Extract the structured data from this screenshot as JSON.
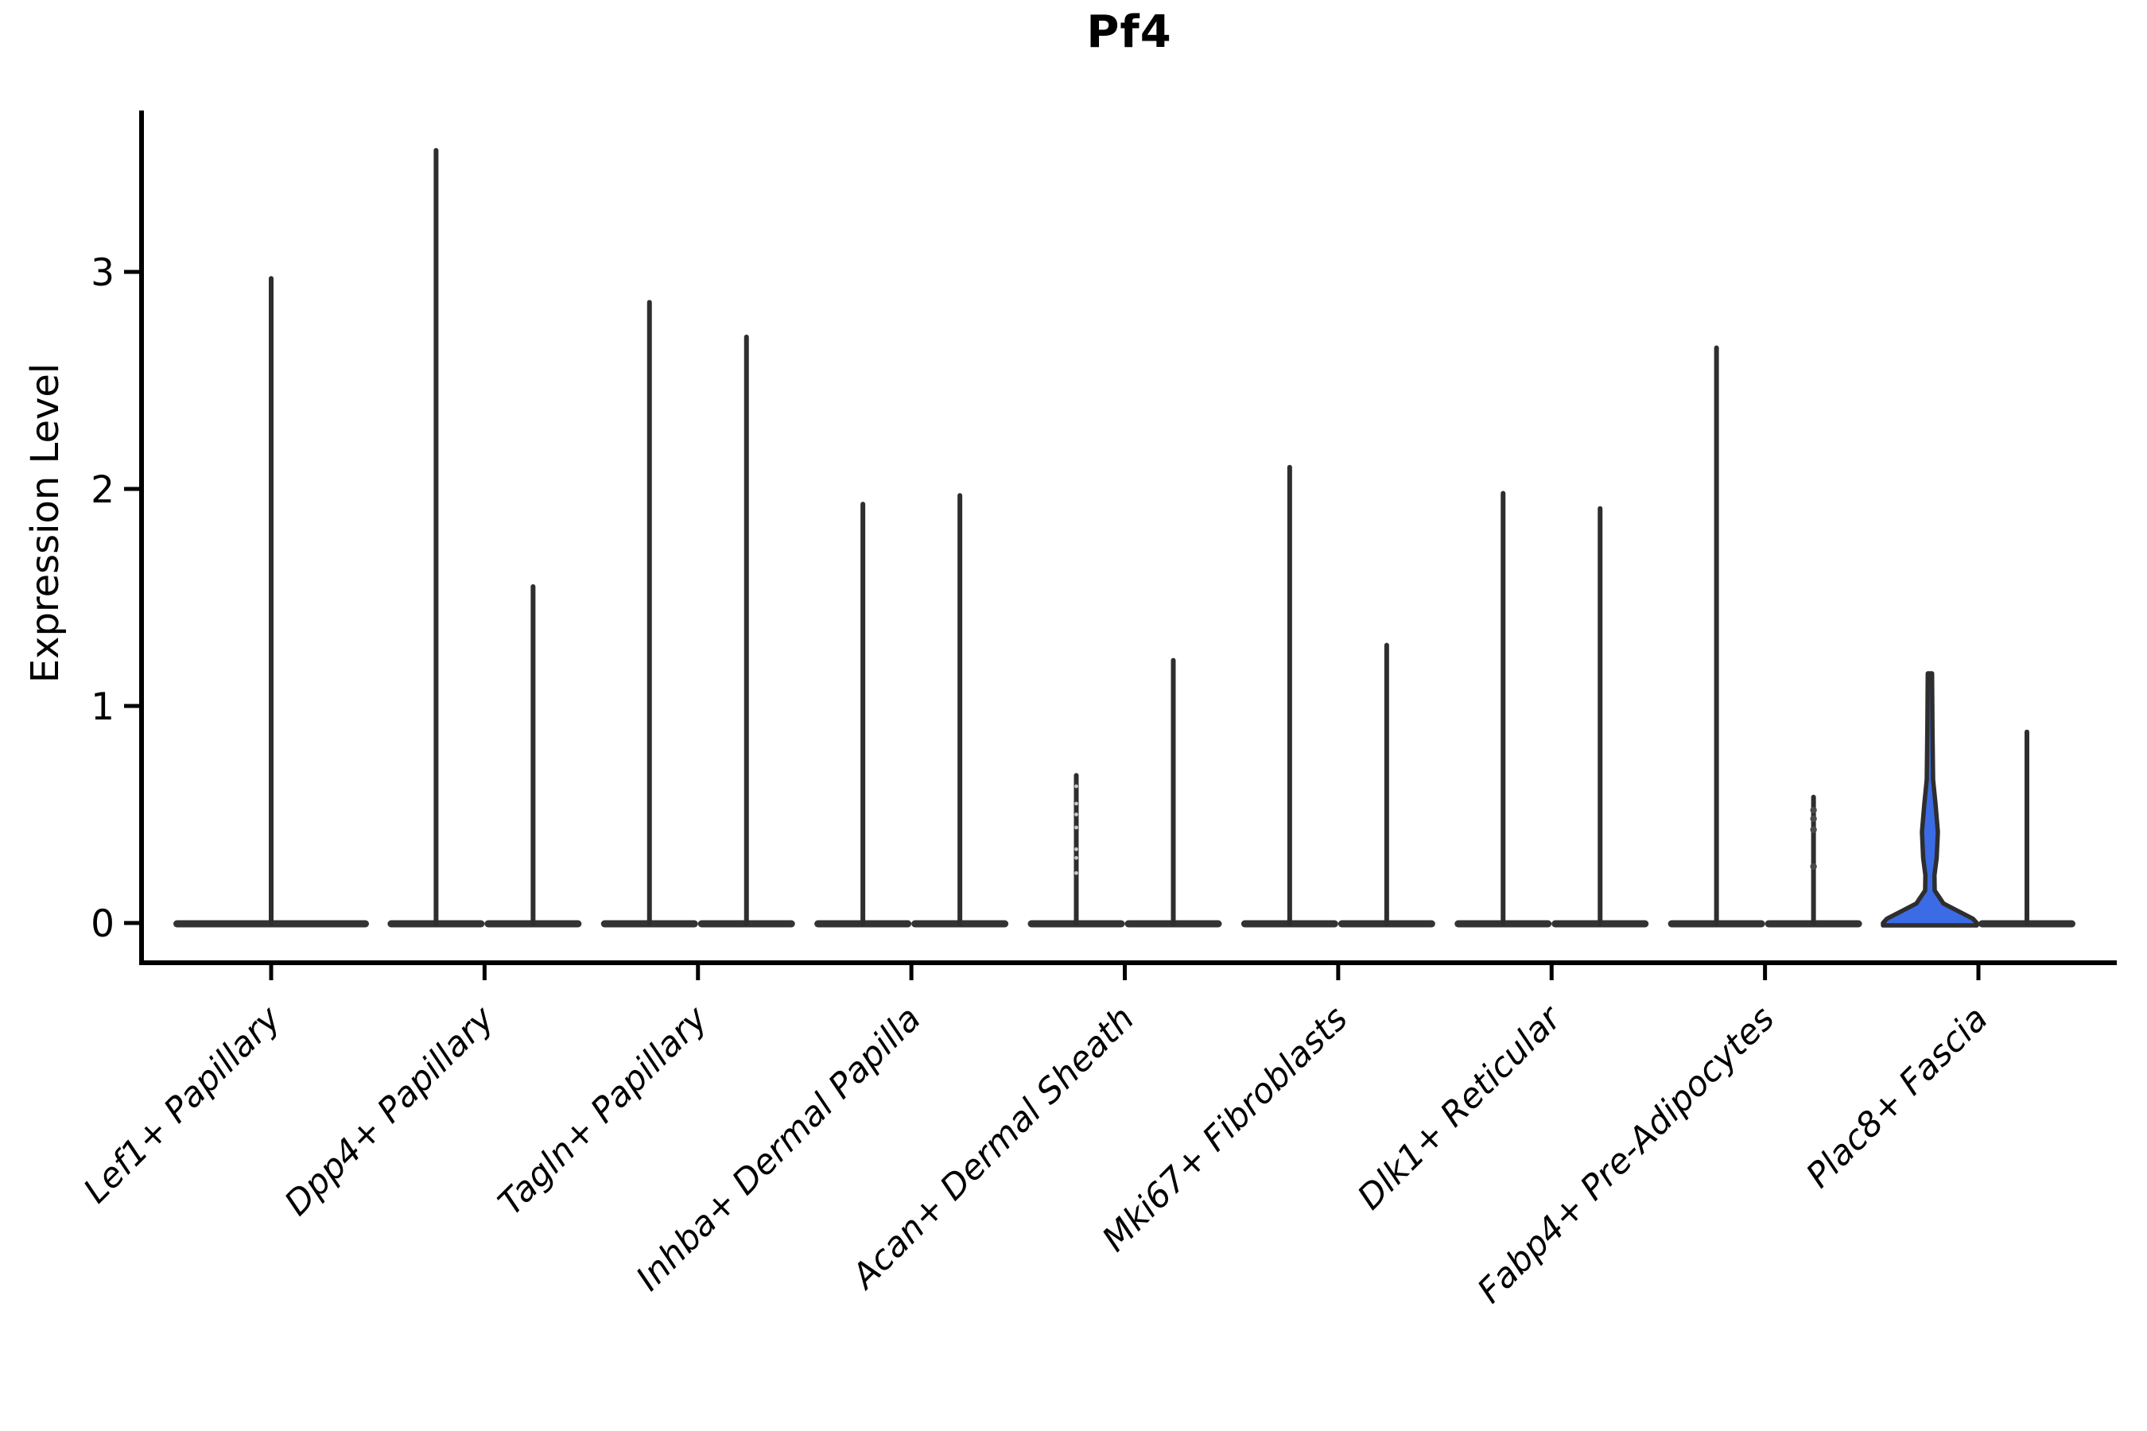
{
  "title": "Pf4",
  "ylabel": "Expression Level",
  "chart_data": {
    "type": "violin",
    "title": "Pf4",
    "xlabel": "",
    "ylabel": "Expression Level",
    "yticks": [
      0,
      1,
      2,
      3
    ],
    "ylim": [
      -0.18,
      3.74
    ],
    "grid": false,
    "legend": null,
    "description": "Seurat-style violin plot of Pf4 expression across 9 fibroblast clusters; most violins collapse to a flat base at 0 with a thin density spike up to the max expressed cell; each category except the first holds two side-by-side violins; the left violin of Plac8+ Fascia is filled blue with a visible density bulge.",
    "categories": [
      "Lef1+ Papillary",
      "Dpp4+ Papillary",
      "Tagln+ Papillary",
      "Inhba+ Dermal Papilla",
      "Acan+ Dermal Sheath",
      "Mki67+ Fibroblasts",
      "Dlk1+ Reticular",
      "Fabp4+ Pre-Adipocytes",
      "Plac8+ Fascia"
    ],
    "violins": [
      {
        "category": "Lef1+ Papillary",
        "position": "center",
        "max": 2.97,
        "fill": "none"
      },
      {
        "category": "Dpp4+ Papillary",
        "position": "left",
        "max": 3.56,
        "fill": "none"
      },
      {
        "category": "Dpp4+ Papillary",
        "position": "right",
        "max": 1.55,
        "fill": "none"
      },
      {
        "category": "Tagln+ Papillary",
        "position": "left",
        "max": 2.86,
        "fill": "none"
      },
      {
        "category": "Tagln+ Papillary",
        "position": "right",
        "max": 2.7,
        "fill": "none"
      },
      {
        "category": "Inhba+ Dermal Papilla",
        "position": "left",
        "max": 1.93,
        "fill": "none"
      },
      {
        "category": "Inhba+ Dermal Papilla",
        "position": "right",
        "max": 1.97,
        "fill": "none"
      },
      {
        "category": "Acan+ Dermal Sheath",
        "position": "left",
        "max": 0.68,
        "fill": "none",
        "points_faint": [
          0.63,
          0.55,
          0.5,
          0.44,
          0.34,
          0.3,
          0.23
        ]
      },
      {
        "category": "Acan+ Dermal Sheath",
        "position": "right",
        "max": 1.21,
        "fill": "none"
      },
      {
        "category": "Mki67+ Fibroblasts",
        "position": "left",
        "max": 2.1,
        "fill": "none"
      },
      {
        "category": "Mki67+ Fibroblasts",
        "position": "right",
        "max": 1.28,
        "fill": "none"
      },
      {
        "category": "Dlk1+ Reticular",
        "position": "left",
        "max": 1.98,
        "fill": "none"
      },
      {
        "category": "Dlk1+ Reticular",
        "position": "right",
        "max": 1.91,
        "fill": "none"
      },
      {
        "category": "Fabp4+ Pre-Adipocytes",
        "position": "left",
        "max": 2.65,
        "fill": "none"
      },
      {
        "category": "Fabp4+ Pre-Adipocytes",
        "position": "right",
        "max": 0.58,
        "fill": "none",
        "points": [
          0.52,
          0.48,
          0.43,
          0.26
        ]
      },
      {
        "category": "Plac8+ Fascia",
        "position": "left",
        "max": 1.15,
        "fill": "#3B6BE5",
        "profile": [
          [
            1.15,
            2.7
          ],
          [
            0.9,
            3.2
          ],
          [
            0.66,
            4.0
          ],
          [
            0.55,
            7.0
          ],
          [
            0.42,
            10.0
          ],
          [
            0.3,
            8.5
          ],
          [
            0.22,
            5.7
          ],
          [
            0.15,
            6.0
          ],
          [
            0.09,
            17.0
          ],
          [
            0.05,
            38.0
          ],
          [
            0.02,
            54.0
          ],
          [
            0.0,
            59.0
          ]
        ]
      },
      {
        "category": "Plac8+ Fascia",
        "position": "right",
        "max": 0.88,
        "fill": "none"
      }
    ],
    "colors": {
      "violin_line": "#2e2e2e",
      "violin_base": "#333333",
      "highlight_fill": "#3B6BE5",
      "axis": "#000000",
      "point": "#4a4a4a",
      "point_faint": "#c9c9c9"
    }
  }
}
